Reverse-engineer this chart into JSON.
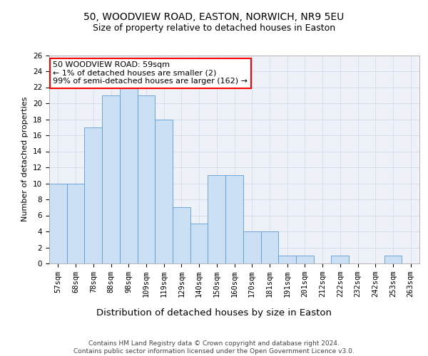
{
  "title1": "50, WOODVIEW ROAD, EASTON, NORWICH, NR9 5EU",
  "title2": "Size of property relative to detached houses in Easton",
  "xlabel": "Distribution of detached houses by size in Easton",
  "ylabel": "Number of detached properties",
  "categories": [
    "57sqm",
    "68sqm",
    "78sqm",
    "88sqm",
    "98sqm",
    "109sqm",
    "119sqm",
    "129sqm",
    "140sqm",
    "150sqm",
    "160sqm",
    "170sqm",
    "181sqm",
    "191sqm",
    "201sqm",
    "212sqm",
    "222sqm",
    "232sqm",
    "242sqm",
    "253sqm",
    "263sqm"
  ],
  "values": [
    10,
    10,
    17,
    21,
    22,
    21,
    18,
    7,
    5,
    11,
    11,
    4,
    4,
    1,
    1,
    0,
    1,
    0,
    0,
    1,
    0
  ],
  "bar_facecolor": "#cce0f5",
  "bar_edgecolor": "#5b9bd5",
  "annotation_box_text": "50 WOODVIEW ROAD: 59sqm\n← 1% of detached houses are smaller (2)\n99% of semi-detached houses are larger (162) →",
  "annotation_box_color": "#ff0000",
  "grid_color": "#d0d8e8",
  "background_color": "#eef2f8",
  "ylim": [
    0,
    26
  ],
  "yticks": [
    0,
    2,
    4,
    6,
    8,
    10,
    12,
    14,
    16,
    18,
    20,
    22,
    24,
    26
  ],
  "footnote": "Contains HM Land Registry data © Crown copyright and database right 2024.\nContains public sector information licensed under the Open Government Licence v3.0.",
  "title1_fontsize": 10,
  "title2_fontsize": 9,
  "xlabel_fontsize": 9.5,
  "ylabel_fontsize": 8,
  "tick_fontsize": 7.5,
  "annotation_fontsize": 8,
  "footnote_fontsize": 6.5
}
